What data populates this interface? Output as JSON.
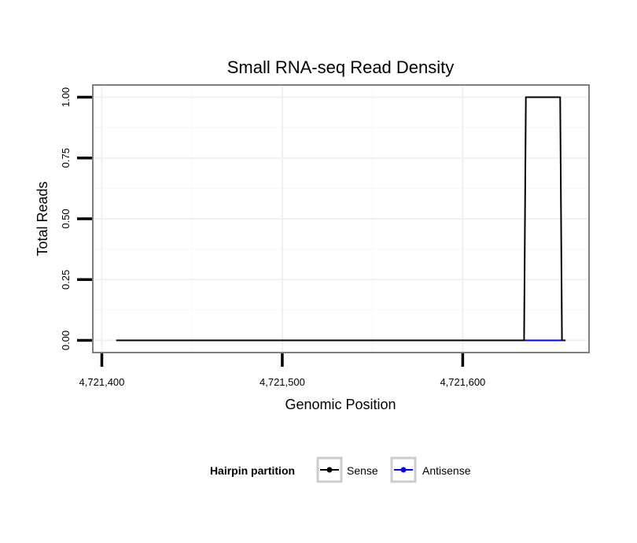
{
  "chart_data": {
    "type": "line",
    "title": "Small RNA-seq Read Density",
    "xlabel": "Genomic Position",
    "ylabel": "Total Reads",
    "xlim": [
      4721395,
      4721670
    ],
    "ylim": [
      -0.05,
      1.05
    ],
    "x_ticks": [
      {
        "value": 4721400,
        "label": "4,721,400"
      },
      {
        "value": 4721500,
        "label": "4,721,500"
      },
      {
        "value": 4721600,
        "label": "4,721,600"
      }
    ],
    "y_ticks": [
      {
        "value": 0.0,
        "label": "0.00"
      },
      {
        "value": 0.25,
        "label": "0.25"
      },
      {
        "value": 0.5,
        "label": "0.50"
      },
      {
        "value": 0.75,
        "label": "0.75"
      },
      {
        "value": 1.0,
        "label": "1.00"
      }
    ],
    "grid": true,
    "series": [
      {
        "name": "Antisense",
        "color": "#0000ff",
        "x": [
          4721408,
          4721636,
          4721656
        ],
        "y": [
          0,
          0,
          0
        ]
      },
      {
        "name": "Sense",
        "color": "#000000",
        "x": [
          4721408,
          4721634,
          4721635,
          4721654,
          4721655,
          4721657
        ],
        "y": [
          0,
          0,
          1,
          1,
          0,
          0
        ]
      }
    ],
    "legend": {
      "title": "Hairpin partition",
      "position": "bottom",
      "entries": [
        {
          "label": "Sense",
          "color": "#000000"
        },
        {
          "label": "Antisense",
          "color": "#0000ff"
        }
      ]
    }
  }
}
